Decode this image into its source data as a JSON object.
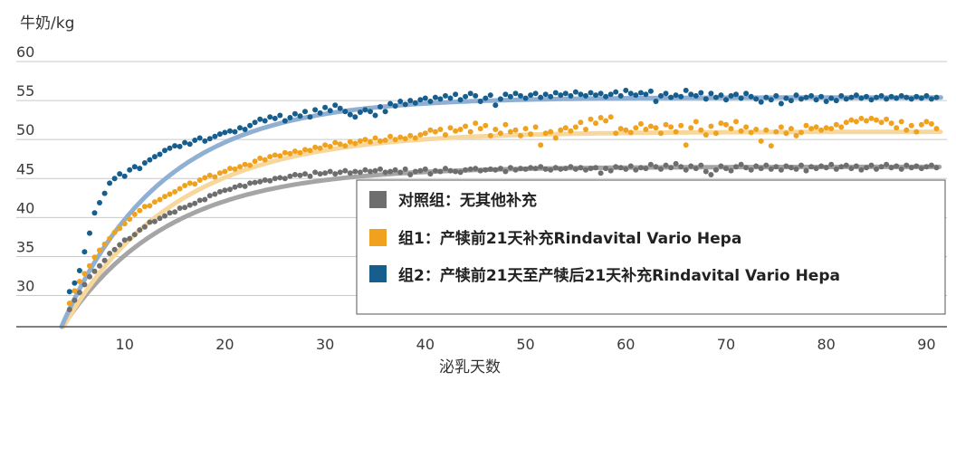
{
  "chart_data": {
    "type": "scatter",
    "title": "",
    "ylabel": "牛奶/kg",
    "xlabel": "泌乳天数",
    "ylim": [
      26,
      60
    ],
    "xlim": [
      2.8,
      91.5
    ],
    "y_ticks": [
      30,
      35,
      40,
      45,
      50,
      55,
      60
    ],
    "x_ticks": [
      10,
      20,
      30,
      40,
      50,
      60,
      70,
      80,
      90
    ],
    "grid": true,
    "legend_position": "inside-right",
    "series": [
      {
        "name": "对照组：无其他补充",
        "color": "#6e6e6e",
        "trend_color": "#a5a5a5",
        "trend": {
          "max": 46.5,
          "k": 0.095,
          "start_value": 26,
          "start_day": 3.8
        },
        "x": [
          4.5,
          5,
          5.5,
          6,
          6.5,
          7,
          7.5,
          8,
          8.5,
          9,
          9.5,
          10,
          10.5,
          11,
          11.5,
          12,
          12.5,
          13,
          13.5,
          14,
          14.5,
          15,
          15.5,
          16,
          16.5,
          17,
          17.5,
          18,
          18.5,
          19,
          19.5,
          20,
          20.5,
          21,
          21.5,
          22,
          22.5,
          23,
          23.5,
          24,
          24.5,
          25,
          25.5,
          26,
          26.5,
          27,
          27.5,
          28,
          28.5,
          29,
          29.5,
          30,
          30.5,
          31,
          31.5,
          32,
          32.5,
          33,
          33.5,
          34,
          34.5,
          35,
          35.5,
          36,
          36.5,
          37,
          37.5,
          38,
          38.5,
          39,
          39.5,
          40,
          40.5,
          41,
          41.5,
          42,
          42.5,
          43,
          43.5,
          44,
          44.5,
          45,
          45.5,
          46,
          46.5,
          47,
          47.5,
          48,
          48.5,
          49,
          49.5,
          50,
          50.5,
          51,
          51.5,
          52,
          52.5,
          53,
          53.5,
          54,
          54.5,
          55,
          55.5,
          56,
          56.5,
          57,
          57.5,
          58,
          58.5,
          59,
          59.5,
          60,
          60.5,
          61,
          61.5,
          62,
          62.5,
          63,
          63.5,
          64,
          64.5,
          65,
          65.5,
          66,
          66.5,
          67,
          67.5,
          68,
          68.5,
          69,
          69.5,
          70,
          70.5,
          71,
          71.5,
          72,
          72.5,
          73,
          73.5,
          74,
          74.5,
          75,
          75.5,
          76,
          76.5,
          77,
          77.5,
          78,
          78.5,
          79,
          79.5,
          80,
          80.5,
          81,
          81.5,
          82,
          82.5,
          83,
          83.5,
          84,
          84.5,
          85,
          85.5,
          86,
          86.5,
          87,
          87.5,
          88,
          88.5,
          89,
          89.5,
          90,
          90.5,
          91
        ],
        "values": [
          28.2,
          29.4,
          30.4,
          31.4,
          32.4,
          33.1,
          33.8,
          34.5,
          35.4,
          35.9,
          36.5,
          37.1,
          37.3,
          37.8,
          38.4,
          38.8,
          39.4,
          39.5,
          39.9,
          40.2,
          40.6,
          40.7,
          41.2,
          41.3,
          41.6,
          41.8,
          42.2,
          42.3,
          42.8,
          43.0,
          43.3,
          43.5,
          43.6,
          43.9,
          44.1,
          44.0,
          44.4,
          44.5,
          44.6,
          44.8,
          44.7,
          45.0,
          45.1,
          45.0,
          45.3,
          45.5,
          45.4,
          45.6,
          45.3,
          45.8,
          45.6,
          45.7,
          45.9,
          45.6,
          45.8,
          46.0,
          45.7,
          45.9,
          45.8,
          46.1,
          45.9,
          46.0,
          46.2,
          45.8,
          45.9,
          46.1,
          45.8,
          46.2,
          45.5,
          45.9,
          46.0,
          46.2,
          45.6,
          46.0,
          45.9,
          46.3,
          46.0,
          45.9,
          45.8,
          46.1,
          46.2,
          46.3,
          46.0,
          46.1,
          46.2,
          46.1,
          46.3,
          45.9,
          46.4,
          46.1,
          46.3,
          46.2,
          46.4,
          46.3,
          46.5,
          46.2,
          46.1,
          46.4,
          46.2,
          46.3,
          46.5,
          46.2,
          46.4,
          46.1,
          46.3,
          46.4,
          45.7,
          46.3,
          46.0,
          46.5,
          46.4,
          46.2,
          46.6,
          46.1,
          46.4,
          46.3,
          46.8,
          46.5,
          46.2,
          46.7,
          46.4,
          46.9,
          46.5,
          46.1,
          46.6,
          46.3,
          46.7,
          45.9,
          45.5,
          46.1,
          46.6,
          46.3,
          46.0,
          46.5,
          46.8,
          46.4,
          46.1,
          46.6,
          46.3,
          46.7,
          46.2,
          46.5,
          46.1,
          46.6,
          46.4,
          46.2,
          46.7,
          46.0,
          46.5,
          46.3,
          46.6,
          46.4,
          46.8,
          46.2,
          46.5,
          46.7,
          46.3,
          46.6,
          46.1,
          46.4,
          46.7,
          46.2,
          46.5,
          46.8,
          46.4,
          46.6,
          46.2,
          46.7,
          46.4,
          46.6,
          46.3,
          46.5,
          46.7,
          46.4
        ]
      },
      {
        "name": "组1：产犊前21天补充Rindavital Vario Hepa",
        "color": "#f0a21e",
        "trend_color": "#f7d79b",
        "trend": {
          "max": 51.0,
          "k": 0.09,
          "start_value": 26,
          "start_day": 3.9
        },
        "x": [
          4.5,
          5,
          5.5,
          6,
          6.5,
          7,
          7.5,
          8,
          8.5,
          9,
          9.5,
          10,
          10.5,
          11,
          11.5,
          12,
          12.5,
          13,
          13.5,
          14,
          14.5,
          15,
          15.5,
          16,
          16.5,
          17,
          17.5,
          18,
          18.5,
          19,
          19.5,
          20,
          20.5,
          21,
          21.5,
          22,
          22.5,
          23,
          23.5,
          24,
          24.5,
          25,
          25.5,
          26,
          26.5,
          27,
          27.5,
          28,
          28.5,
          29,
          29.5,
          30,
          30.5,
          31,
          31.5,
          32,
          32.5,
          33,
          33.5,
          34,
          34.5,
          35,
          35.5,
          36,
          36.5,
          37,
          37.5,
          38,
          38.5,
          39,
          39.5,
          40,
          40.5,
          41,
          41.5,
          42,
          42.5,
          43,
          43.5,
          44,
          44.5,
          45,
          45.5,
          46,
          46.5,
          47,
          47.5,
          48,
          48.5,
          49,
          49.5,
          50,
          50.5,
          51,
          51.5,
          52,
          52.5,
          53,
          53.5,
          54,
          54.5,
          55,
          55.5,
          56,
          56.5,
          57,
          57.5,
          58,
          58.5,
          59,
          59.5,
          60,
          60.5,
          61,
          61.5,
          62,
          62.5,
          63,
          63.5,
          64,
          64.5,
          65,
          65.5,
          66,
          66.5,
          67,
          67.5,
          68,
          68.5,
          69,
          69.5,
          70,
          70.5,
          71,
          71.5,
          72,
          72.5,
          73,
          73.5,
          74,
          74.5,
          75,
          75.5,
          76,
          76.5,
          77,
          77.5,
          78,
          78.5,
          79,
          79.5,
          80,
          80.5,
          81,
          81.5,
          82,
          82.5,
          83,
          83.5,
          84,
          84.5,
          85,
          85.5,
          86,
          86.5,
          87,
          87.5,
          88,
          88.5,
          89,
          89.5,
          90,
          90.5,
          91
        ],
        "values": [
          29.0,
          30.6,
          31.8,
          32.8,
          33.8,
          34.9,
          35.8,
          36.6,
          37.3,
          38.1,
          38.6,
          39.2,
          39.8,
          40.4,
          40.9,
          41.4,
          41.5,
          42.0,
          42.3,
          42.7,
          43.0,
          43.3,
          43.7,
          44.1,
          44.4,
          44.3,
          44.8,
          45.1,
          45.4,
          45.2,
          45.7,
          45.9,
          46.3,
          46.2,
          46.5,
          46.8,
          46.7,
          47.2,
          47.6,
          47.4,
          47.8,
          48.0,
          47.9,
          48.3,
          48.2,
          48.5,
          48.3,
          48.7,
          48.6,
          49.0,
          48.9,
          49.3,
          49.1,
          49.6,
          49.4,
          49.2,
          49.7,
          49.5,
          49.8,
          50.0,
          49.7,
          50.2,
          49.8,
          49.9,
          50.4,
          50.0,
          50.3,
          50.1,
          50.5,
          50.2,
          50.6,
          50.8,
          51.2,
          51.0,
          51.3,
          50.6,
          51.5,
          51.1,
          51.3,
          51.7,
          51.0,
          52.1,
          51.4,
          51.8,
          50.5,
          51.3,
          50.8,
          51.9,
          51.0,
          51.2,
          50.5,
          51.4,
          50.7,
          51.6,
          49.3,
          50.8,
          51.0,
          50.2,
          51.2,
          51.5,
          51.1,
          51.6,
          52.2,
          51.3,
          52.6,
          52.1,
          52.8,
          52.4,
          52.9,
          50.8,
          51.4,
          51.2,
          50.9,
          51.5,
          52.0,
          51.3,
          51.7,
          51.5,
          50.8,
          51.9,
          51.6,
          51.0,
          51.8,
          49.3,
          51.5,
          52.3,
          51.2,
          50.6,
          51.7,
          50.8,
          52.1,
          51.9,
          51.4,
          52.3,
          51.1,
          51.6,
          50.9,
          51.3,
          49.8,
          51.2,
          49.2,
          51.0,
          51.6,
          50.8,
          51.4,
          50.5,
          50.9,
          51.8,
          51.4,
          51.6,
          51.2,
          51.5,
          51.4,
          51.9,
          51.6,
          52.2,
          52.5,
          52.3,
          52.7,
          52.4,
          52.7,
          52.5,
          52.2,
          52.6,
          52.1,
          51.5,
          52.3,
          51.2,
          51.8,
          51.0,
          51.9,
          52.3,
          52.0,
          51.4
        ]
      },
      {
        "name": "组2：产犊前21天至产犊后21天补充Rindavital Vario Hepa",
        "color": "#155e8e",
        "trend_color": "#8fb0d3",
        "trend": {
          "max": 55.4,
          "k": 0.1,
          "start_value": 26,
          "start_day": 3.7
        },
        "x": [
          4.5,
          5,
          5.5,
          6,
          6.5,
          7,
          7.5,
          8,
          8.5,
          9,
          9.5,
          10,
          10.5,
          11,
          11.5,
          12,
          12.5,
          13,
          13.5,
          14,
          14.5,
          15,
          15.5,
          16,
          16.5,
          17,
          17.5,
          18,
          18.5,
          19,
          19.5,
          20,
          20.5,
          21,
          21.5,
          22,
          22.5,
          23,
          23.5,
          24,
          24.5,
          25,
          25.5,
          26,
          26.5,
          27,
          27.5,
          28,
          28.5,
          29,
          29.5,
          30,
          30.5,
          31,
          31.5,
          32,
          32.5,
          33,
          33.5,
          34,
          34.5,
          35,
          35.5,
          36,
          36.5,
          37,
          37.5,
          38,
          38.5,
          39,
          39.5,
          40,
          40.5,
          41,
          41.5,
          42,
          42.5,
          43,
          43.5,
          44,
          44.5,
          45,
          45.5,
          46,
          46.5,
          47,
          47.5,
          48,
          48.5,
          49,
          49.5,
          50,
          50.5,
          51,
          51.5,
          52,
          52.5,
          53,
          53.5,
          54,
          54.5,
          55,
          55.5,
          56,
          56.5,
          57,
          57.5,
          58,
          58.5,
          59,
          59.5,
          60,
          60.5,
          61,
          61.5,
          62,
          62.5,
          63,
          63.5,
          64,
          64.5,
          65,
          65.5,
          66,
          66.5,
          67,
          67.5,
          68,
          68.5,
          69,
          69.5,
          70,
          70.5,
          71,
          71.5,
          72,
          72.5,
          73,
          73.5,
          74,
          74.5,
          75,
          75.5,
          76,
          76.5,
          77,
          77.5,
          78,
          78.5,
          79,
          79.5,
          80,
          80.5,
          81,
          81.5,
          82,
          82.5,
          83,
          83.5,
          84,
          84.5,
          85,
          85.5,
          86,
          86.5,
          87,
          87.5,
          88,
          88.5,
          89,
          89.5,
          90,
          90.5,
          91
        ],
        "values": [
          30.5,
          31.6,
          33.2,
          35.6,
          38.0,
          40.6,
          41.9,
          43.1,
          44.4,
          45.0,
          45.6,
          45.3,
          46.1,
          46.5,
          46.3,
          47.0,
          47.4,
          47.8,
          48.1,
          48.6,
          48.9,
          49.2,
          49.1,
          49.6,
          49.4,
          49.9,
          50.2,
          49.8,
          50.1,
          50.4,
          50.7,
          50.9,
          51.1,
          51.0,
          51.5,
          51.3,
          51.8,
          52.2,
          52.6,
          52.4,
          52.9,
          52.7,
          53.1,
          52.4,
          52.8,
          53.3,
          53.0,
          53.6,
          52.9,
          53.8,
          53.4,
          54.1,
          53.7,
          54.4,
          54.0,
          53.6,
          53.2,
          52.9,
          53.5,
          53.8,
          53.6,
          53.1,
          54.2,
          53.6,
          54.6,
          54.3,
          54.9,
          54.5,
          55.0,
          54.7,
          55.1,
          55.3,
          54.9,
          55.4,
          55.2,
          55.6,
          55.3,
          55.8,
          55.1,
          55.5,
          55.9,
          55.6,
          54.9,
          55.3,
          55.7,
          54.4,
          55.2,
          55.8,
          55.5,
          55.9,
          55.6,
          55.3,
          55.7,
          55.9,
          55.4,
          55.8,
          55.5,
          56.0,
          55.7,
          55.9,
          55.6,
          56.1,
          55.8,
          55.6,
          56.0,
          55.7,
          55.9,
          55.5,
          55.8,
          56.1,
          55.6,
          56.3,
          55.9,
          55.7,
          56.0,
          55.8,
          56.2,
          54.9,
          55.6,
          55.9,
          55.4,
          55.7,
          55.5,
          56.3,
          55.8,
          55.6,
          56.0,
          55.2,
          55.9,
          55.4,
          55.7,
          55.1,
          55.6,
          55.8,
          55.3,
          55.9,
          55.5,
          55.2,
          54.8,
          55.4,
          55.1,
          55.6,
          54.6,
          55.3,
          55.0,
          55.7,
          55.2,
          55.4,
          55.6,
          55.1,
          55.5,
          54.9,
          55.3,
          55.0,
          55.6,
          55.2,
          55.4,
          55.7,
          55.3,
          55.5,
          55.1,
          55.4,
          55.6,
          55.2,
          55.5,
          55.3,
          55.6,
          55.4,
          55.2,
          55.5,
          55.3,
          55.6,
          55.2,
          55.4
        ]
      }
    ]
  }
}
